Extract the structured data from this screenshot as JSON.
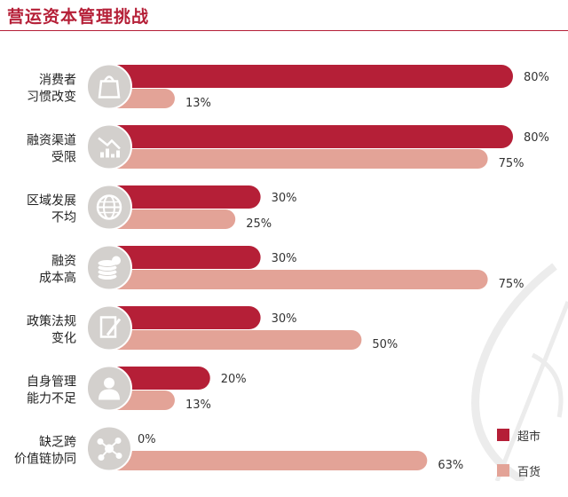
{
  "title": "营运资本管理挑战",
  "colors": {
    "series1": "#b51f37",
    "series2": "#e3a397",
    "title": "#b51f37",
    "icon_bg": "#d3d0cd",
    "watermark": "#ececec"
  },
  "legend": [
    "超市",
    "百货"
  ],
  "chart_data": {
    "type": "bar",
    "orientation": "horizontal",
    "categories": [
      {
        "lines": [
          "消费者",
          "习惯改变"
        ],
        "icon": "shopping-bag-icon"
      },
      {
        "lines": [
          "融资渠道",
          "受限"
        ],
        "icon": "declining-chart-icon"
      },
      {
        "lines": [
          "区域发展",
          "不均"
        ],
        "icon": "globe-icon"
      },
      {
        "lines": [
          "融资",
          "成本高"
        ],
        "icon": "coin-stack-icon"
      },
      {
        "lines": [
          "政策法规",
          "变化"
        ],
        "icon": "document-pen-icon"
      },
      {
        "lines": [
          "自身管理",
          "能力不足"
        ],
        "icon": "person-icon"
      },
      {
        "lines": [
          "缺乏跨",
          "价值链协同"
        ],
        "icon": "network-icon"
      }
    ],
    "series": [
      {
        "name": "超市",
        "values": [
          80,
          80,
          30,
          30,
          30,
          20,
          0
        ],
        "labels": [
          "80%",
          "80%",
          "30%",
          "30%",
          "30%",
          "20%",
          "0%"
        ]
      },
      {
        "name": "百货",
        "values": [
          13,
          75,
          25,
          75,
          50,
          13,
          63
        ],
        "labels": [
          "13%",
          "75%",
          "25%",
          "75%",
          "50%",
          "13%",
          "63%"
        ]
      }
    ],
    "xlim": [
      0,
      100
    ],
    "grid": false,
    "legend_position": "bottom-right"
  }
}
